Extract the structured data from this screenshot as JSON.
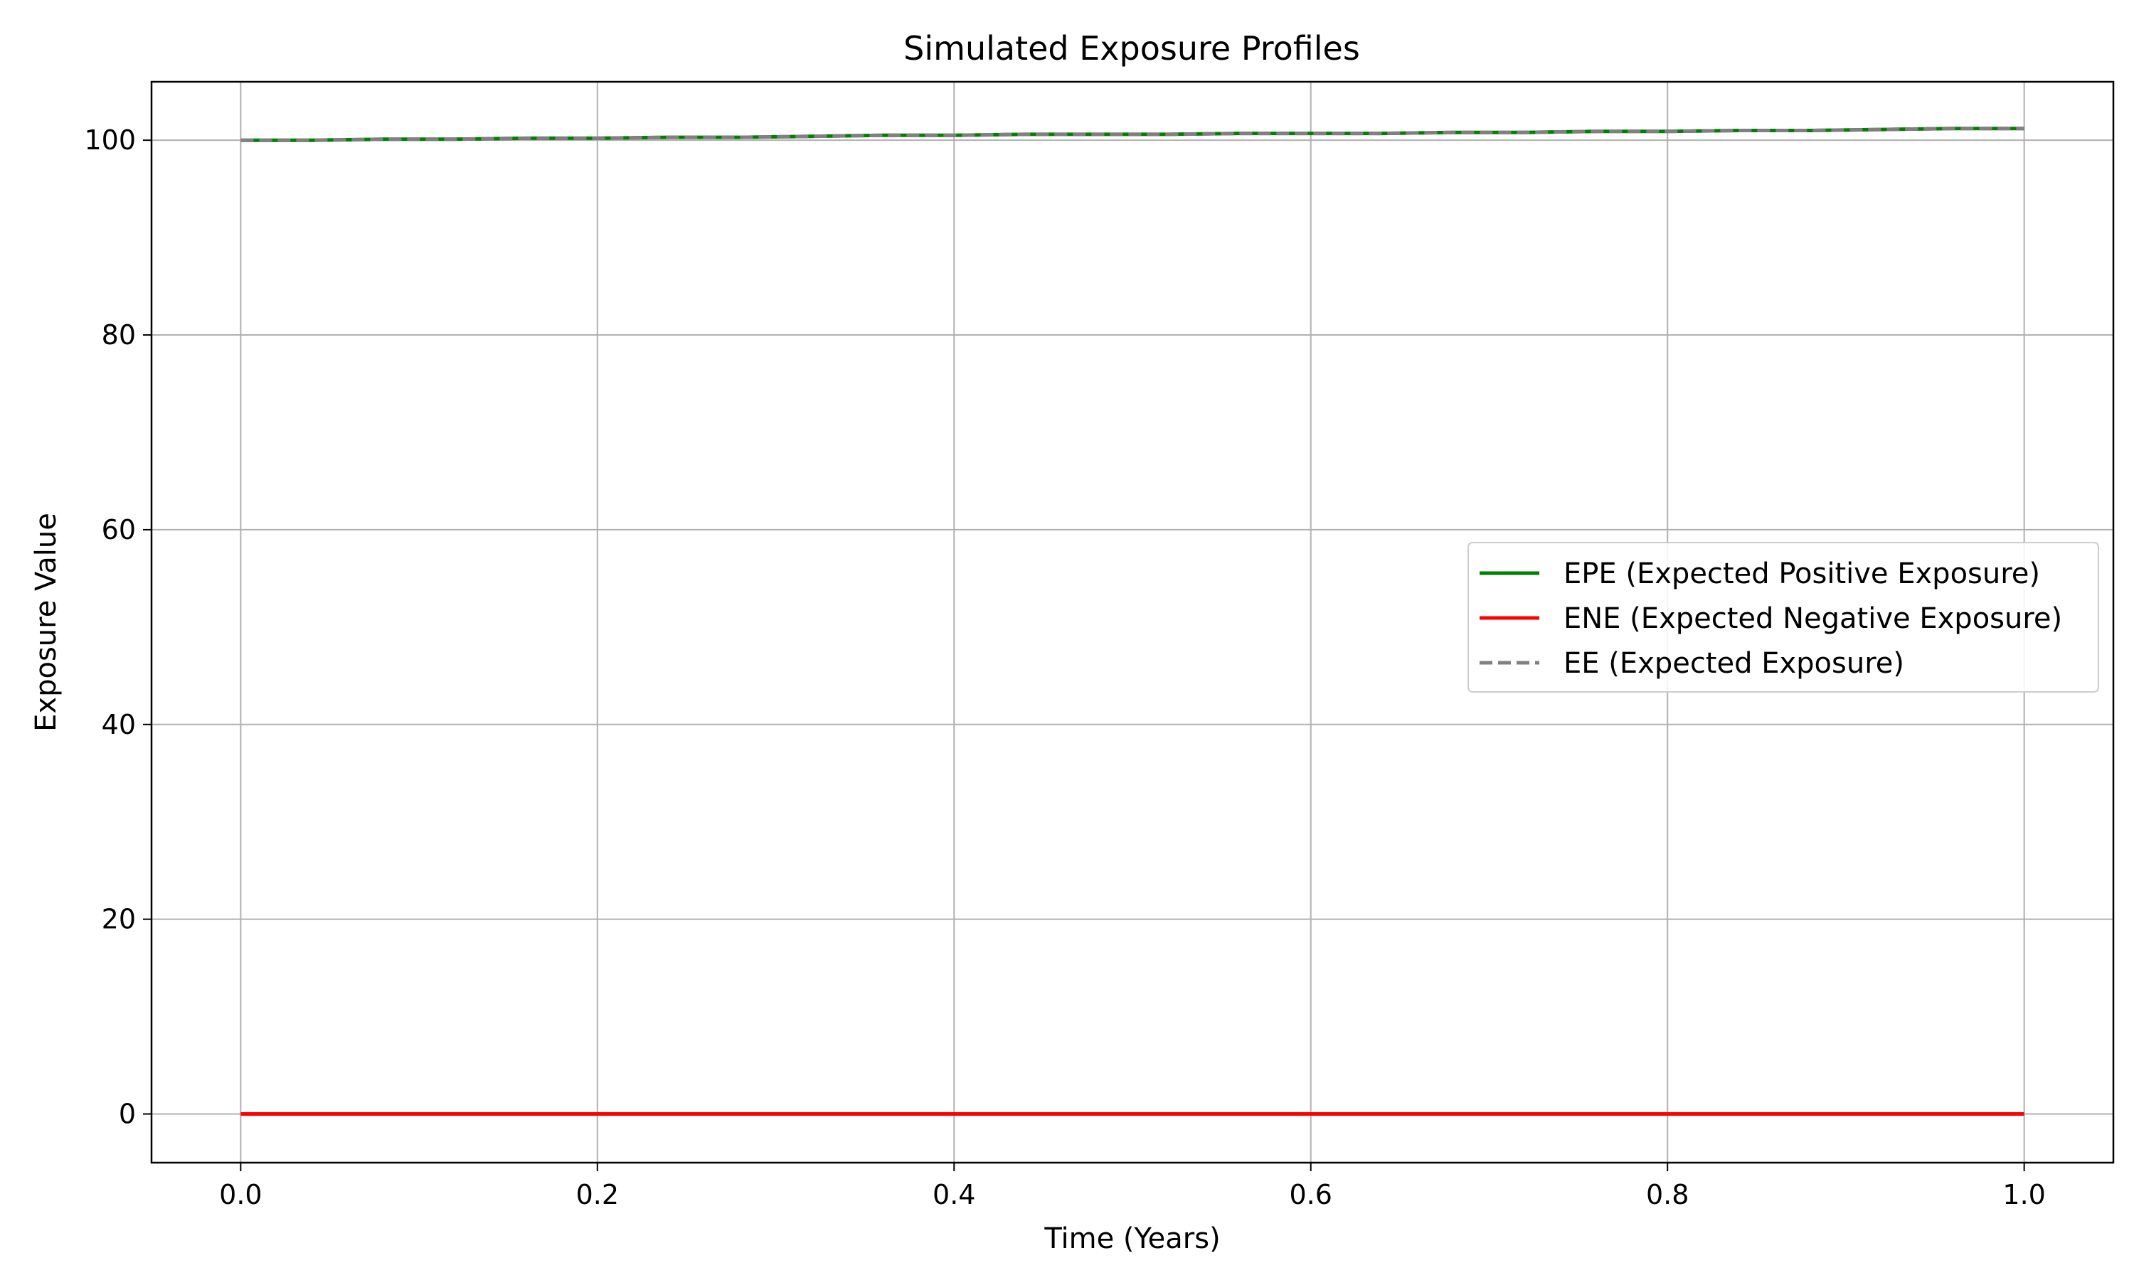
{
  "chart_data": {
    "type": "line",
    "title": "Simulated Exposure Profiles",
    "xlabel": "Time (Years)",
    "ylabel": "Exposure Value",
    "xlim": [
      -0.05,
      1.05
    ],
    "ylim": [
      -5,
      106
    ],
    "xticks": [
      0.0,
      0.2,
      0.4,
      0.6,
      0.8,
      1.0
    ],
    "xtick_labels": [
      "0.0",
      "0.2",
      "0.4",
      "0.6",
      "0.8",
      "1.0"
    ],
    "yticks": [
      0,
      20,
      40,
      60,
      80,
      100
    ],
    "ytick_labels": [
      "0",
      "20",
      "40",
      "60",
      "80",
      "100"
    ],
    "grid": true,
    "legend_position": "center-right",
    "x": [
      0.0,
      0.04,
      0.08,
      0.12,
      0.16,
      0.2,
      0.24,
      0.28,
      0.32,
      0.36,
      0.4,
      0.44,
      0.48,
      0.52,
      0.56,
      0.6,
      0.64,
      0.68,
      0.72,
      0.76,
      0.8,
      0.84,
      0.88,
      0.92,
      0.96,
      1.0
    ],
    "series": [
      {
        "name": "EPE (Expected Positive Exposure)",
        "color": "#008000",
        "style": "solid",
        "values": [
          100.0,
          100.0,
          100.1,
          100.1,
          100.2,
          100.2,
          100.3,
          100.3,
          100.4,
          100.5,
          100.5,
          100.6,
          100.6,
          100.6,
          100.7,
          100.7,
          100.7,
          100.8,
          100.8,
          100.9,
          100.9,
          101.0,
          101.0,
          101.1,
          101.2,
          101.2
        ]
      },
      {
        "name": "ENE (Expected Negative Exposure)",
        "color": "#ff0000",
        "style": "solid",
        "values": [
          0,
          0,
          0,
          0,
          0,
          0,
          0,
          0,
          0,
          0,
          0,
          0,
          0,
          0,
          0,
          0,
          0,
          0,
          0,
          0,
          0,
          0,
          0,
          0,
          0,
          0
        ]
      },
      {
        "name": "EE (Expected Exposure)",
        "color": "#808080",
        "style": "dashed",
        "values": [
          100.0,
          100.0,
          100.1,
          100.1,
          100.2,
          100.2,
          100.3,
          100.3,
          100.4,
          100.5,
          100.5,
          100.6,
          100.6,
          100.6,
          100.7,
          100.7,
          100.7,
          100.8,
          100.8,
          100.9,
          100.9,
          101.0,
          101.0,
          101.1,
          101.2,
          101.2
        ]
      }
    ]
  }
}
